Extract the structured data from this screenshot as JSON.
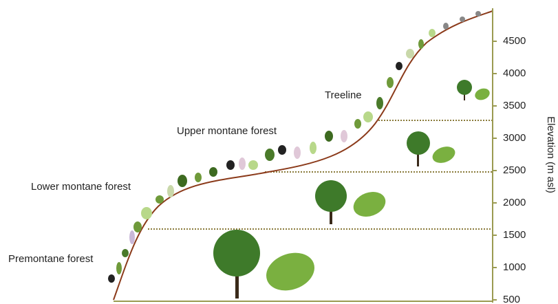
{
  "axis": {
    "label": "Elevation (m asl)",
    "ticks": [
      500,
      1000,
      1500,
      2000,
      2500,
      3000,
      3500,
      4000,
      4500
    ]
  },
  "zones": [
    {
      "label": "Premontane forest"
    },
    {
      "label": "Lower montane forest"
    },
    {
      "label": "Upper montane forest"
    },
    {
      "label": "Treeline"
    }
  ]
}
